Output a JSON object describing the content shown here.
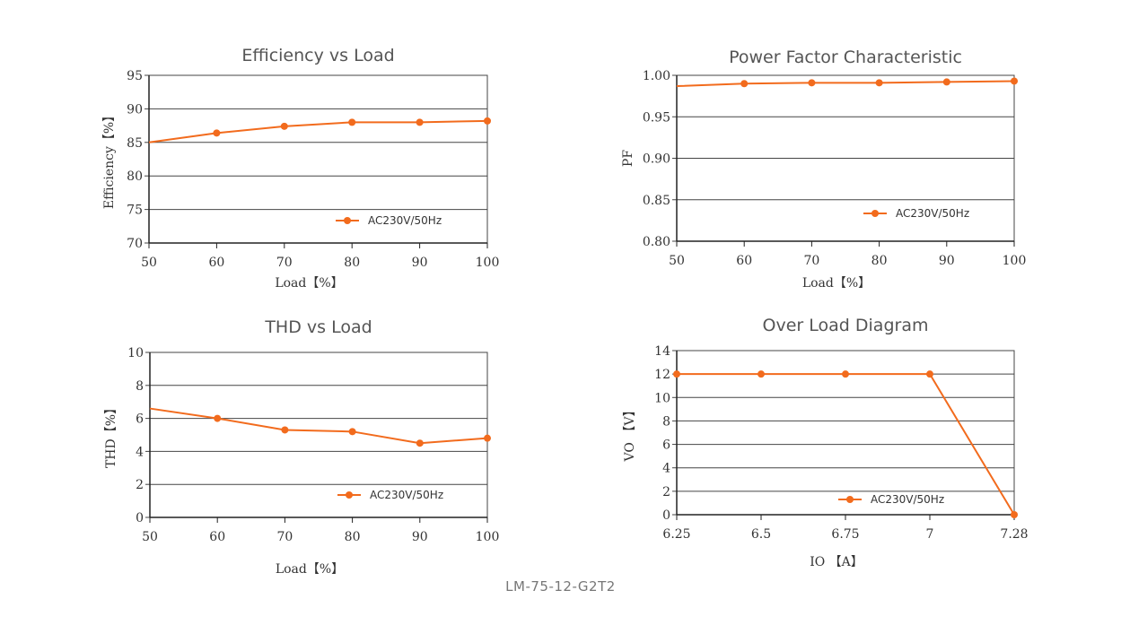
{
  "footer": "LM-75-12-G2T2",
  "series_color": "#F26B1D",
  "chart_data": [
    {
      "id": "efficiency",
      "type": "line",
      "title": "Efficiency vs Load",
      "xlabel": "Load【%】",
      "ylabel": "Efficiency【%】",
      "x": [
        50,
        60,
        70,
        80,
        90,
        100
      ],
      "xticks": [
        "50",
        "60",
        "70",
        "80",
        "90",
        "100"
      ],
      "yticks": [
        "70",
        "75",
        "80",
        "85",
        "90",
        "95"
      ],
      "ylim": [
        70,
        95
      ],
      "grid": true,
      "legend": "bottom-right",
      "series": [
        {
          "name": "AC230V/50Hz",
          "values": [
            85.0,
            86.4,
            87.4,
            88.0,
            88.0,
            88.2
          ],
          "markers": [
            false,
            true,
            true,
            true,
            true,
            true
          ]
        }
      ]
    },
    {
      "id": "pf",
      "type": "line",
      "title": "Power Factor Characteristic",
      "xlabel": "Load【%】",
      "ylabel": "PF",
      "x": [
        50,
        60,
        70,
        80,
        90,
        100
      ],
      "xticks": [
        "50",
        "60",
        "70",
        "80",
        "90",
        "100"
      ],
      "yticks": [
        "0.80",
        "0.85",
        "0.90",
        "0.95",
        "1.00"
      ],
      "ylim": [
        0.8,
        1.0
      ],
      "grid": true,
      "legend": "bottom-right",
      "series": [
        {
          "name": "AC230V/50Hz",
          "values": [
            0.987,
            0.99,
            0.991,
            0.991,
            0.992,
            0.993
          ],
          "markers": [
            false,
            true,
            true,
            true,
            true,
            true
          ]
        }
      ]
    },
    {
      "id": "thd",
      "type": "line",
      "title": "THD vs Load",
      "xlabel": "Load【%】",
      "ylabel": "THD【%】",
      "x": [
        50,
        60,
        70,
        80,
        90,
        100
      ],
      "xticks": [
        "50",
        "60",
        "70",
        "80",
        "90",
        "100"
      ],
      "yticks": [
        "0",
        "2",
        "4",
        "6",
        "8",
        "10"
      ],
      "ylim": [
        0,
        10
      ],
      "grid": true,
      "legend": "bottom-right",
      "series": [
        {
          "name": "AC230V/50Hz",
          "values": [
            6.6,
            6.0,
            5.3,
            5.2,
            4.5,
            4.8
          ],
          "markers": [
            false,
            true,
            true,
            true,
            true,
            true
          ]
        }
      ]
    },
    {
      "id": "overload",
      "type": "line",
      "title": "Over Load Diagram",
      "xlabel": "IO 【A】",
      "ylabel": "VO 【V】",
      "x": [
        6.25,
        6.5,
        6.75,
        7,
        7.28
      ],
      "xticks": [
        "6.25",
        "6.5",
        "6.75",
        "7",
        "7.28"
      ],
      "yticks": [
        "0",
        "2",
        "4",
        "6",
        "8",
        "10",
        "12",
        "14"
      ],
      "ylim": [
        0,
        14
      ],
      "grid": true,
      "legend": "bottom-right",
      "series": [
        {
          "name": "AC230V/50Hz",
          "values": [
            12,
            12,
            12,
            12,
            0
          ],
          "markers": [
            true,
            true,
            true,
            true,
            true
          ]
        }
      ]
    }
  ]
}
